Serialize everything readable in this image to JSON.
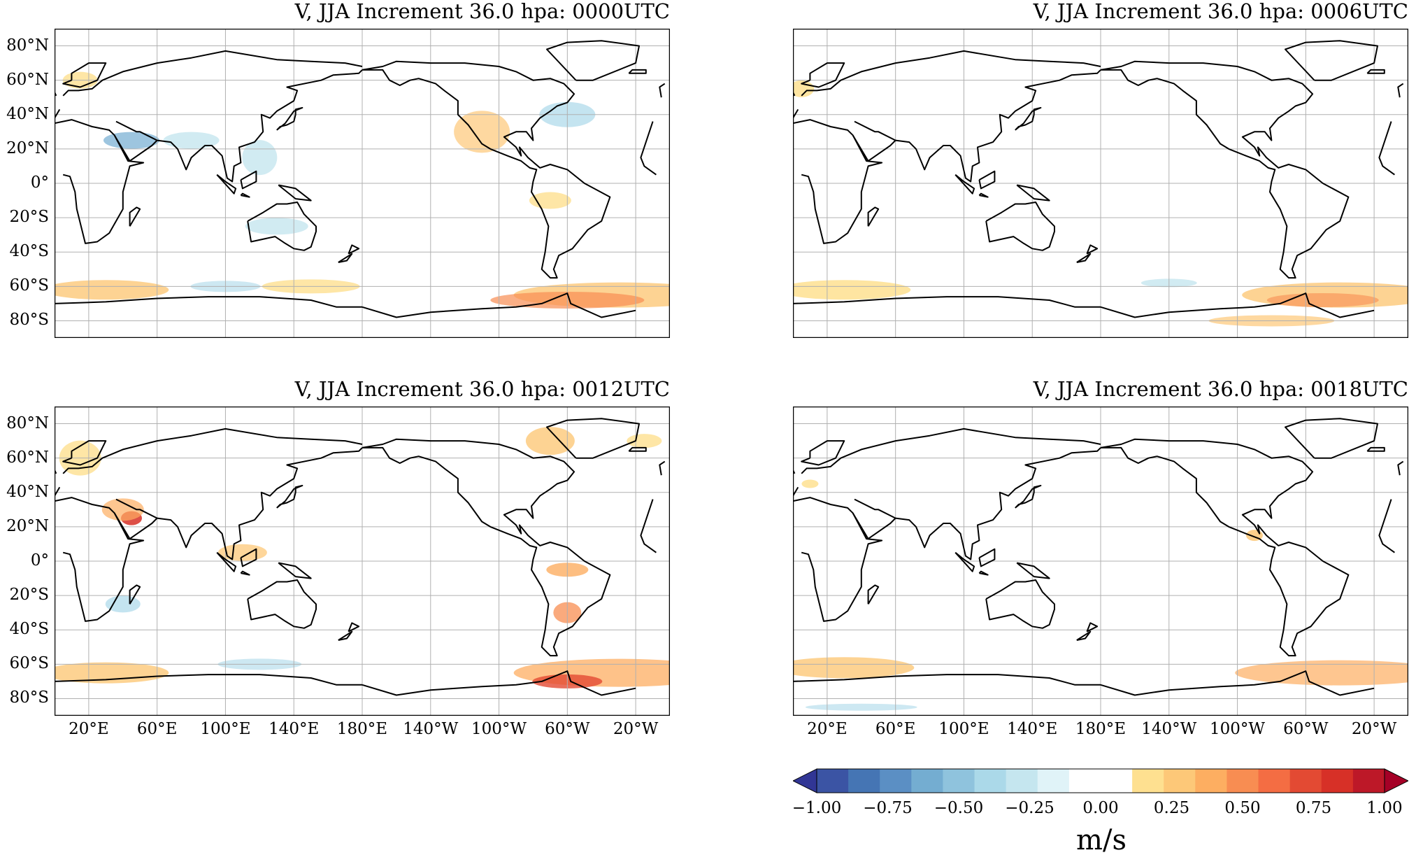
{
  "panels": [
    {
      "title": "V, JJA Increment 36.0 hpa: 0000UTC"
    },
    {
      "title": "V, JJA Increment 36.0 hpa: 0006UTC"
    },
    {
      "title": "V, JJA Increment 36.0 hpa: 0012UTC"
    },
    {
      "title": "V, JJA Increment 36.0 hpa: 0018UTC"
    }
  ],
  "lat_ticks": [
    "80°N",
    "60°N",
    "40°N",
    "20°N",
    "0°",
    "20°S",
    "40°S",
    "60°S",
    "80°S"
  ],
  "lon_ticks": [
    "20°E",
    "60°E",
    "100°E",
    "140°E",
    "180°E",
    "140°W",
    "100°W",
    "60°W",
    "20°W"
  ],
  "colorbar": {
    "ticks": [
      "−1.00",
      "−0.75",
      "−0.50",
      "−0.25",
      "0.00",
      "0.25",
      "0.50",
      "0.75",
      "1.00"
    ],
    "label": "m/s",
    "colors": [
      "#313695",
      "#3b54a4",
      "#4575b4",
      "#5b8fc4",
      "#74add1",
      "#8fc3dd",
      "#abd9e9",
      "#c5e6ef",
      "#e0f3f8",
      "#ffffff",
      "#ffffff",
      "#fee090",
      "#fdc878",
      "#fdae61",
      "#f88d52",
      "#f46d43",
      "#e34a33",
      "#d73027",
      "#bd1828",
      "#a50026"
    ]
  },
  "chart_data": {
    "type": "heatmap",
    "variable": "V",
    "unit": "m/s",
    "color_range": [
      -1.0,
      1.0
    ],
    "panels": [
      "0000UTC",
      "0006UTC",
      "0012UTC",
      "0018UTC"
    ]
  }
}
